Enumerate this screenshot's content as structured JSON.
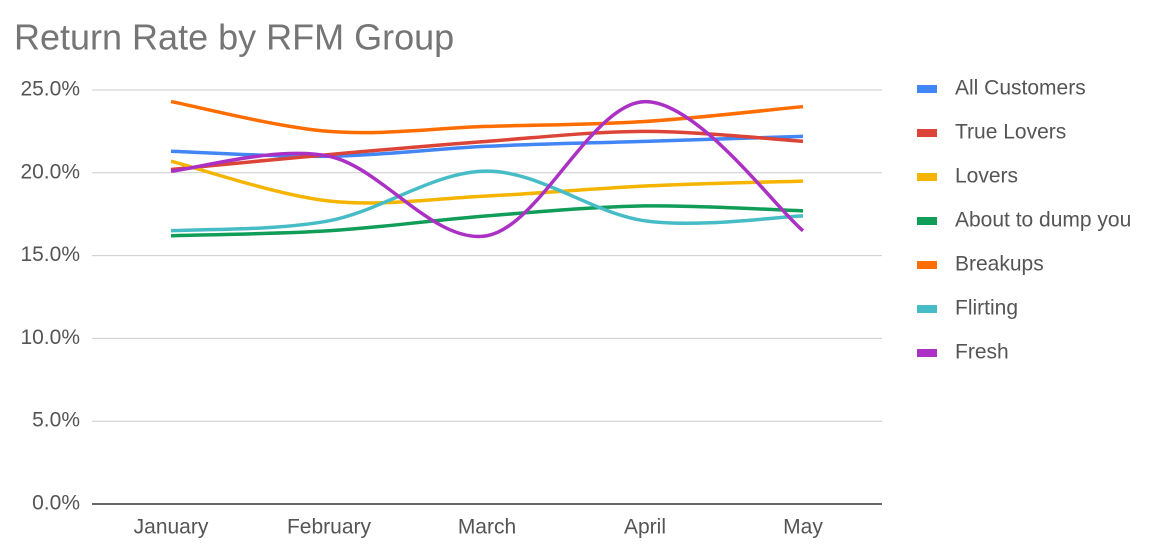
{
  "chart_data": {
    "type": "line",
    "title": "Return Rate by RFM Group",
    "categories": [
      "January",
      "February",
      "March",
      "April",
      "May"
    ],
    "series": [
      {
        "name": "All Customers",
        "color": "#4285f4",
        "values": [
          21.3,
          21.0,
          21.6,
          21.9,
          22.2
        ]
      },
      {
        "name": "True Lovers",
        "color": "#db4437",
        "values": [
          20.2,
          21.1,
          21.9,
          22.5,
          21.9
        ]
      },
      {
        "name": "Lovers",
        "color": "#f4b400",
        "values": [
          20.7,
          18.3,
          18.6,
          19.2,
          19.5
        ]
      },
      {
        "name": "About to dump you",
        "color": "#0f9d58",
        "values": [
          16.2,
          16.5,
          17.4,
          18.0,
          17.7
        ]
      },
      {
        "name": "Breakups",
        "color": "#ff6d00",
        "values": [
          24.3,
          22.5,
          22.8,
          23.1,
          24.0
        ]
      },
      {
        "name": "Flirting",
        "color": "#46bdc6",
        "values": [
          16.5,
          17.1,
          20.1,
          17.1,
          17.4
        ]
      },
      {
        "name": "Fresh",
        "color": "#ab30c4",
        "values": [
          20.1,
          21.0,
          16.2,
          24.3,
          16.5
        ]
      }
    ],
    "ylim": [
      0,
      25
    ],
    "yticks": [
      {
        "value": 0,
        "label": "0.0%"
      },
      {
        "value": 5,
        "label": "5.0%"
      },
      {
        "value": 10,
        "label": "10.0%"
      },
      {
        "value": 15,
        "label": "15.0%"
      },
      {
        "value": 20,
        "label": "20.0%"
      },
      {
        "value": 25,
        "label": "25.0%"
      }
    ],
    "grid": true,
    "smooth": true,
    "legend": "right"
  }
}
